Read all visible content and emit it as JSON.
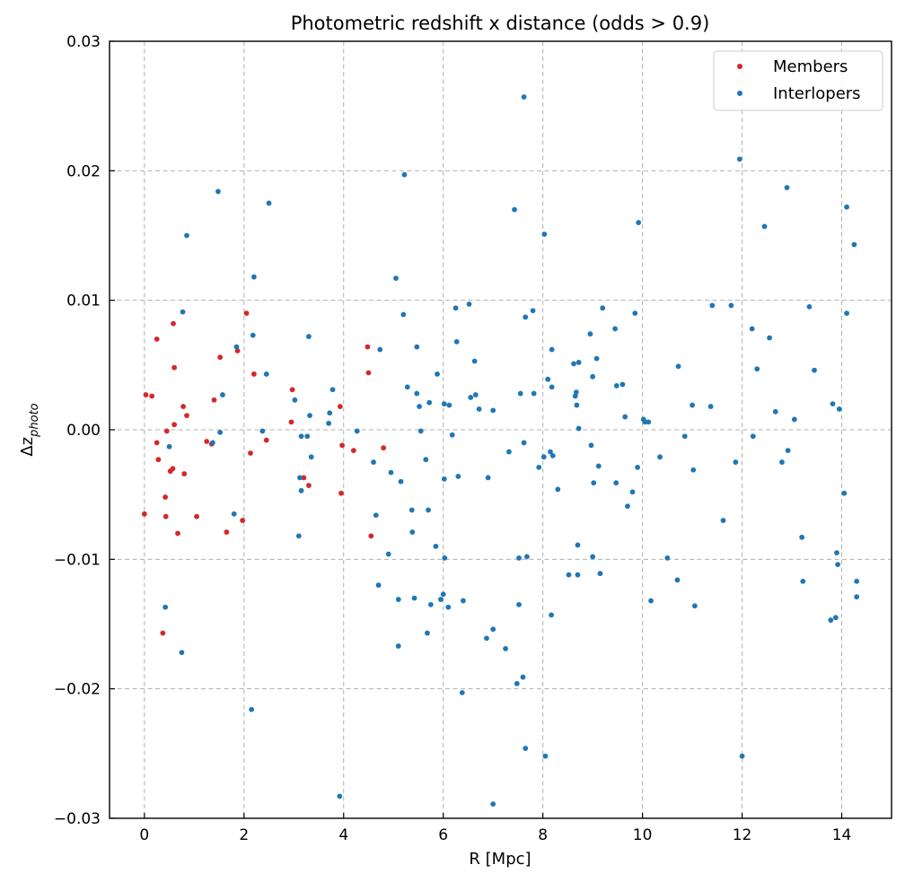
{
  "chart_data": {
    "type": "scatter",
    "title": "Photometric redshift x distance (odds > 0.9)",
    "xlabel": "R [Mpc]",
    "ylabel_base": "Δz",
    "ylabel_sub": "photo",
    "xlim": [
      -0.7,
      15.0
    ],
    "ylim": [
      -0.03,
      0.03
    ],
    "xticks": [
      0,
      2,
      4,
      6,
      8,
      10,
      12,
      14
    ],
    "xtick_labels": [
      "0",
      "2",
      "4",
      "6",
      "8",
      "10",
      "12",
      "14"
    ],
    "yticks": [
      -0.03,
      -0.02,
      -0.01,
      0.0,
      0.01,
      0.02,
      0.03
    ],
    "ytick_labels": [
      "−0.03",
      "−0.02",
      "−0.01",
      "0.00",
      "0.01",
      "0.02",
      "0.03"
    ],
    "grid": true,
    "legend_position": "top-right",
    "series": [
      {
        "name": "Members",
        "color": "#d62728",
        "points": [
          [
            0.0,
            -0.0065
          ],
          [
            0.03,
            0.0027
          ],
          [
            0.15,
            0.0026
          ],
          [
            0.25,
            0.007
          ],
          [
            0.25,
            -0.001
          ],
          [
            0.28,
            -0.0023
          ],
          [
            0.37,
            -0.0157
          ],
          [
            0.42,
            -0.0052
          ],
          [
            0.43,
            -0.0067
          ],
          [
            0.45,
            -0.0001
          ],
          [
            0.52,
            -0.0032
          ],
          [
            0.57,
            -0.003
          ],
          [
            0.58,
            0.0082
          ],
          [
            0.6,
            0.0048
          ],
          [
            0.6,
            0.0004
          ],
          [
            0.67,
            -0.008
          ],
          [
            0.78,
            0.0018
          ],
          [
            0.8,
            -0.0034
          ],
          [
            0.85,
            0.0011
          ],
          [
            1.05,
            -0.0067
          ],
          [
            1.25,
            -0.0009
          ],
          [
            1.35,
            -0.0011
          ],
          [
            1.4,
            0.0023
          ],
          [
            1.52,
            0.0056
          ],
          [
            1.65,
            -0.0079
          ],
          [
            1.87,
            0.0061
          ],
          [
            1.97,
            -0.007
          ],
          [
            2.05,
            0.009
          ],
          [
            2.13,
            -0.0018
          ],
          [
            2.2,
            0.0043
          ],
          [
            2.45,
            -0.0008
          ],
          [
            2.95,
            0.0006
          ],
          [
            2.97,
            0.0031
          ],
          [
            3.2,
            -0.0037
          ],
          [
            3.3,
            -0.0043
          ],
          [
            3.93,
            0.0018
          ],
          [
            3.95,
            -0.0049
          ],
          [
            3.97,
            -0.0012
          ],
          [
            4.2,
            -0.0016
          ],
          [
            4.48,
            0.0064
          ],
          [
            4.5,
            0.0044
          ],
          [
            4.55,
            -0.0082
          ],
          [
            4.8,
            -0.0014
          ]
        ]
      },
      {
        "name": "Interlopers",
        "color": "#1f77b4",
        "points": [
          [
            0.42,
            -0.0137
          ],
          [
            0.5,
            -0.0013
          ],
          [
            0.75,
            -0.0172
          ],
          [
            0.77,
            0.0091
          ],
          [
            0.85,
            0.015
          ],
          [
            1.37,
            -0.001
          ],
          [
            1.48,
            0.0184
          ],
          [
            1.52,
            -0.0002
          ],
          [
            1.57,
            0.0027
          ],
          [
            1.8,
            -0.0065
          ],
          [
            1.85,
            0.0064
          ],
          [
            2.15,
            -0.0216
          ],
          [
            2.18,
            0.0073
          ],
          [
            2.2,
            0.0118
          ],
          [
            2.37,
            -0.0001
          ],
          [
            2.45,
            0.0043
          ],
          [
            2.5,
            0.0175
          ],
          [
            3.02,
            0.0023
          ],
          [
            3.1,
            -0.0082
          ],
          [
            3.12,
            -0.0037
          ],
          [
            3.15,
            -0.0047
          ],
          [
            3.15,
            -0.0005
          ],
          [
            3.27,
            -0.0005
          ],
          [
            3.3,
            0.0072
          ],
          [
            3.32,
            0.0011
          ],
          [
            3.35,
            -0.0021
          ],
          [
            3.7,
            0.0005
          ],
          [
            3.72,
            0.0013
          ],
          [
            3.78,
            0.0031
          ],
          [
            3.92,
            -0.0283
          ],
          [
            4.27,
            -0.0001
          ],
          [
            4.6,
            -0.0025
          ],
          [
            4.65,
            -0.0066
          ],
          [
            4.7,
            -0.012
          ],
          [
            4.73,
            0.0062
          ],
          [
            4.9,
            -0.0096
          ],
          [
            4.95,
            -0.0033
          ],
          [
            5.05,
            0.0117
          ],
          [
            5.1,
            -0.0167
          ],
          [
            5.1,
            -0.0131
          ],
          [
            5.15,
            -0.004
          ],
          [
            5.2,
            0.0089
          ],
          [
            5.22,
            0.0197
          ],
          [
            5.28,
            0.0033
          ],
          [
            5.37,
            -0.0062
          ],
          [
            5.38,
            -0.0079
          ],
          [
            5.42,
            -0.013
          ],
          [
            5.47,
            0.0028
          ],
          [
            5.47,
            0.0064
          ],
          [
            5.52,
            0.0018
          ],
          [
            5.55,
            -0.0001
          ],
          [
            5.65,
            -0.0023
          ],
          [
            5.68,
            -0.0157
          ],
          [
            5.7,
            -0.0062
          ],
          [
            5.72,
            0.0021
          ],
          [
            5.75,
            -0.0135
          ],
          [
            5.85,
            -0.009
          ],
          [
            5.88,
            0.0043
          ],
          [
            5.95,
            -0.0131
          ],
          [
            6.0,
            -0.0127
          ],
          [
            6.02,
            -0.0038
          ],
          [
            6.02,
            0.002
          ],
          [
            6.03,
            -0.0099
          ],
          [
            6.1,
            -0.0137
          ],
          [
            6.12,
            0.0019
          ],
          [
            6.18,
            -0.0004
          ],
          [
            6.25,
            0.0094
          ],
          [
            6.27,
            0.0068
          ],
          [
            6.3,
            -0.0036
          ],
          [
            6.38,
            -0.0203
          ],
          [
            6.4,
            -0.0132
          ],
          [
            6.52,
            0.0097
          ],
          [
            6.55,
            0.0025
          ],
          [
            6.63,
            0.0053
          ],
          [
            6.65,
            0.0027
          ],
          [
            6.72,
            0.0016
          ],
          [
            6.87,
            -0.0161
          ],
          [
            6.9,
            -0.0037
          ],
          [
            7.0,
            0.0015
          ],
          [
            7.0,
            -0.0154
          ],
          [
            7.0,
            -0.0289
          ],
          [
            7.25,
            -0.0169
          ],
          [
            7.32,
            -0.0017
          ],
          [
            7.43,
            0.017
          ],
          [
            7.48,
            -0.0196
          ],
          [
            7.52,
            -0.0099
          ],
          [
            7.52,
            -0.0135
          ],
          [
            7.55,
            0.0028
          ],
          [
            7.6,
            -0.0191
          ],
          [
            7.62,
            -0.001
          ],
          [
            7.62,
            0.0257
          ],
          [
            7.65,
            0.0087
          ],
          [
            7.65,
            -0.0246
          ],
          [
            7.68,
            -0.0098
          ],
          [
            7.8,
            0.0092
          ],
          [
            7.82,
            0.0028
          ],
          [
            7.92,
            -0.0029
          ],
          [
            8.02,
            -0.0021
          ],
          [
            8.03,
            0.0151
          ],
          [
            8.05,
            -0.0252
          ],
          [
            8.1,
            0.0039
          ],
          [
            8.15,
            -0.0017
          ],
          [
            8.17,
            -0.0143
          ],
          [
            8.18,
            0.0062
          ],
          [
            8.18,
            0.0033
          ],
          [
            8.2,
            -0.002
          ],
          [
            8.3,
            -0.0046
          ],
          [
            8.52,
            -0.0112
          ],
          [
            8.62,
            0.0051
          ],
          [
            8.65,
            0.0026
          ],
          [
            8.67,
            0.0029
          ],
          [
            8.68,
            0.0019
          ],
          [
            8.7,
            -0.0089
          ],
          [
            8.7,
            -0.0112
          ],
          [
            8.72,
            0.0001
          ],
          [
            8.72,
            0.0052
          ],
          [
            8.95,
            0.0074
          ],
          [
            8.97,
            -0.0012
          ],
          [
            9.0,
            0.0041
          ],
          [
            9.0,
            -0.0098
          ],
          [
            9.02,
            -0.0041
          ],
          [
            9.08,
            0.0055
          ],
          [
            9.12,
            -0.0028
          ],
          [
            9.15,
            -0.0111
          ],
          [
            9.2,
            0.0094
          ],
          [
            9.45,
            0.0078
          ],
          [
            9.47,
            -0.0041
          ],
          [
            9.48,
            0.0034
          ],
          [
            9.6,
            0.0035
          ],
          [
            9.65,
            0.001
          ],
          [
            9.7,
            -0.0059
          ],
          [
            9.8,
            -0.0048
          ],
          [
            9.85,
            0.009
          ],
          [
            9.9,
            -0.0029
          ],
          [
            9.92,
            0.016
          ],
          [
            10.02,
            0.0008
          ],
          [
            10.05,
            0.0006
          ],
          [
            10.12,
            0.0006
          ],
          [
            10.17,
            -0.0132
          ],
          [
            10.35,
            -0.0021
          ],
          [
            10.5,
            -0.0099
          ],
          [
            10.7,
            -0.0116
          ],
          [
            10.72,
            0.0049
          ],
          [
            10.85,
            -0.0005
          ],
          [
            11.0,
            0.0019
          ],
          [
            11.02,
            -0.0031
          ],
          [
            11.05,
            -0.0136
          ],
          [
            11.37,
            0.0018
          ],
          [
            11.4,
            0.0096
          ],
          [
            11.62,
            -0.007
          ],
          [
            11.78,
            0.0096
          ],
          [
            11.87,
            -0.0025
          ],
          [
            11.95,
            0.0209
          ],
          [
            12.0,
            -0.0252
          ],
          [
            12.2,
            0.0078
          ],
          [
            12.22,
            -0.0005
          ],
          [
            12.3,
            0.0047
          ],
          [
            12.45,
            0.0157
          ],
          [
            12.55,
            0.0071
          ],
          [
            12.67,
            0.0014
          ],
          [
            12.8,
            -0.0025
          ],
          [
            12.9,
            0.0187
          ],
          [
            12.92,
            -0.0016
          ],
          [
            13.05,
            0.0008
          ],
          [
            13.2,
            -0.0083
          ],
          [
            13.22,
            -0.0117
          ],
          [
            13.35,
            0.0095
          ],
          [
            13.45,
            0.0046
          ],
          [
            13.78,
            -0.0147
          ],
          [
            13.82,
            0.002
          ],
          [
            13.88,
            -0.0145
          ],
          [
            13.9,
            -0.0095
          ],
          [
            13.92,
            -0.0104
          ],
          [
            13.95,
            0.0016
          ],
          [
            14.05,
            -0.0049
          ],
          [
            14.1,
            0.009
          ],
          [
            14.1,
            0.0172
          ],
          [
            14.25,
            0.0143
          ],
          [
            14.3,
            -0.0117
          ],
          [
            14.3,
            -0.0129
          ]
        ]
      }
    ]
  }
}
